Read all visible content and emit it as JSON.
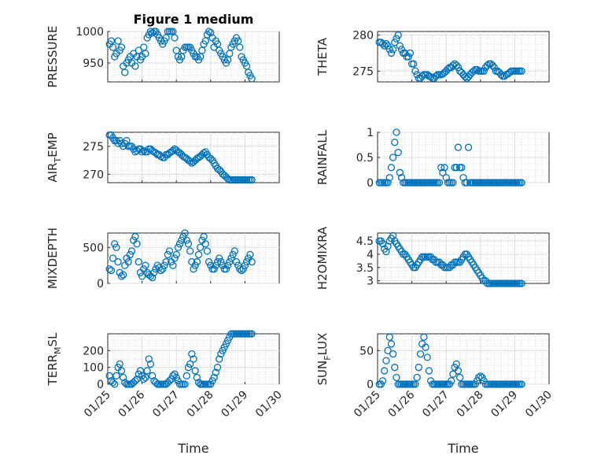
{
  "title": "Figure 1 medium",
  "chart_data": {
    "type": "scatter",
    "marker": "circle",
    "marker_color": "#0072bd",
    "grid": true,
    "minor_grid": true,
    "xlabel": "Time",
    "x_range": [
      "01/25",
      "01/30"
    ],
    "x_tick_labels": [
      "01/25",
      "01/26",
      "01/27",
      "01/28",
      "01/29",
      "01/30"
    ],
    "x": [
      0.05,
      0.1,
      0.15,
      0.2,
      0.25,
      0.3,
      0.35,
      0.4,
      0.45,
      0.5,
      0.55,
      0.6,
      0.65,
      0.7,
      0.75,
      0.8,
      0.85,
      0.9,
      0.95,
      1.0,
      1.05,
      1.1,
      1.15,
      1.2,
      1.25,
      1.3,
      1.35,
      1.4,
      1.45,
      1.5,
      1.55,
      1.6,
      1.65,
      1.7,
      1.75,
      1.8,
      1.85,
      1.9,
      1.95,
      2.0,
      2.05,
      2.1,
      2.15,
      2.2,
      2.25,
      2.3,
      2.35,
      2.4,
      2.45,
      2.5,
      2.55,
      2.6,
      2.65,
      2.7,
      2.75,
      2.8,
      2.85,
      2.9,
      2.95,
      3.0,
      3.05,
      3.1,
      3.15,
      3.2,
      3.25,
      3.3,
      3.35,
      3.4,
      3.45,
      3.5,
      3.55,
      3.6,
      3.65,
      3.7,
      3.75,
      3.8,
      3.85,
      3.9,
      3.95,
      4.0,
      4.05,
      4.1,
      4.15,
      4.2
    ],
    "panels": [
      {
        "ylabel": "PRESSURE",
        "ylim": [
          920,
          1000
        ],
        "y_ticks": [
          950,
          1000
        ],
        "values": [
          980,
          985,
          975,
          960,
          965,
          985,
          970,
          975,
          945,
          935,
          950,
          955,
          960,
          950,
          965,
          945,
          960,
          970,
          955,
          960,
          975,
          965,
          990,
          995,
          1000,
          998,
          1000,
          1000,
          995,
          990,
          985,
          980,
          985,
          990,
          1000,
          1000,
          1000,
          1000,
          990,
          970,
          960,
          955,
          960,
          970,
          975,
          975,
          975,
          975,
          970,
          965,
          960,
          960,
          955,
          960,
          970,
          980,
          985,
          995,
          1000,
          998,
          990,
          975,
          985,
          980,
          970,
          965,
          960,
          955,
          950,
          955,
          965,
          975,
          980,
          985,
          990,
          985,
          975,
          960,
          955,
          950,
          945,
          935,
          930,
          925
        ]
      },
      {
        "ylabel": "THETA",
        "ylim": [
          273.5,
          280.5
        ],
        "y_ticks": [
          275,
          280
        ],
        "values": [
          279,
          279,
          278.8,
          278.5,
          278.8,
          278.5,
          278,
          277.5,
          278,
          279,
          279.5,
          280,
          278.5,
          278,
          277.5,
          277.5,
          277,
          277,
          277.5,
          276,
          276,
          275,
          274.5,
          274,
          274,
          274.3,
          274.5,
          274.5,
          274.5,
          274.3,
          274.2,
          274,
          274,
          274.3,
          274.5,
          274.5,
          274.5,
          274.6,
          274.8,
          275,
          275.3,
          275.5,
          275.5,
          275.8,
          276,
          275.8,
          275.5,
          275,
          274.8,
          274.5,
          274.2,
          274,
          274.2,
          274.5,
          274.8,
          275,
          275.2,
          275.2,
          275,
          275,
          275,
          275,
          275.5,
          275.8,
          276,
          276,
          275.8,
          275.5,
          275,
          275,
          274.8,
          274.5,
          274.3,
          274.3,
          274.5,
          274.6,
          274.8,
          275,
          275,
          275,
          275,
          275,
          275,
          275
        ]
      },
      {
        "ylabel": "AIR_TEMP",
        "ylim": [
          268.5,
          277.5
        ],
        "y_ticks": [
          270,
          275
        ],
        "values": [
          277,
          277,
          276.5,
          276,
          276,
          275.5,
          276,
          275.5,
          275,
          275.5,
          276,
          275,
          275,
          275,
          274.5,
          274,
          274.2,
          274.5,
          274.5,
          274,
          274.2,
          274,
          274,
          274.5,
          274.5,
          274.2,
          274,
          273.8,
          273.5,
          273.5,
          273.2,
          273,
          273,
          273.5,
          273.5,
          273.8,
          274,
          274.2,
          274.5,
          274.3,
          274,
          273.8,
          273.5,
          273.2,
          273,
          272.8,
          272.5,
          272.3,
          272,
          272.2,
          272.5,
          272.8,
          273,
          273.2,
          273.5,
          273.8,
          274,
          273.5,
          273,
          272.8,
          272.5,
          272,
          271.5,
          271,
          270.8,
          270.5,
          270,
          269.8,
          269.5,
          269.2,
          269,
          269,
          269,
          269,
          269,
          269,
          269,
          269,
          269,
          269,
          269,
          269,
          269,
          269
        ]
      },
      {
        "ylabel": "RAINFALL",
        "ylim": [
          0,
          1
        ],
        "y_ticks": [
          0,
          0.5,
          1
        ],
        "values": [
          0,
          0,
          0,
          0,
          0,
          0,
          0.1,
          0.3,
          0.5,
          0.8,
          1.0,
          0.6,
          0.2,
          0.1,
          0,
          0,
          0,
          0,
          0,
          0,
          0,
          0,
          0,
          0,
          0,
          0,
          0,
          0,
          0,
          0,
          0,
          0,
          0,
          0,
          0,
          0,
          0.3,
          0.2,
          0.3,
          0.1,
          0,
          0,
          0,
          0,
          0.3,
          0.3,
          0.7,
          0.3,
          0.3,
          0.1,
          0,
          0,
          0.7,
          0,
          0,
          0,
          0,
          0,
          0,
          0,
          0,
          0,
          0,
          0,
          0,
          0,
          0,
          0,
          0,
          0,
          0,
          0,
          0,
          0,
          0,
          0,
          0,
          0,
          0,
          0,
          0,
          0,
          0,
          0
        ]
      },
      {
        "ylabel": "MIXDEPTH",
        "ylim": [
          0,
          700
        ],
        "y_ticks": [
          0,
          500
        ],
        "values": [
          200,
          180,
          350,
          550,
          500,
          300,
          150,
          100,
          120,
          250,
          350,
          300,
          400,
          450,
          600,
          650,
          550,
          300,
          150,
          100,
          200,
          250,
          150,
          120,
          100,
          80,
          150,
          200,
          250,
          220,
          180,
          200,
          250,
          300,
          400,
          450,
          300,
          250,
          350,
          400,
          500,
          550,
          600,
          650,
          700,
          600,
          550,
          450,
          300,
          200,
          250,
          300,
          400,
          500,
          600,
          650,
          550,
          450,
          300,
          250,
          200,
          200,
          250,
          300,
          350,
          300,
          250,
          200,
          200,
          250,
          300,
          350,
          400,
          450,
          300,
          250,
          200,
          180,
          200,
          250,
          300,
          350,
          400,
          300
        ]
      },
      {
        "ylabel": "H2OMIXRA",
        "ylim": [
          2.9,
          4.8
        ],
        "y_ticks": [
          3,
          3.5,
          4,
          4.5
        ],
        "values": [
          4.5,
          4.5,
          4.4,
          4.2,
          4.1,
          4.3,
          4.5,
          4.6,
          4.7,
          4.5,
          4.4,
          4.3,
          4.2,
          4.1,
          4.0,
          4.0,
          3.9,
          3.8,
          3.7,
          3.6,
          3.5,
          3.5,
          3.6,
          3.7,
          3.8,
          3.9,
          3.9,
          3.9,
          3.9,
          3.9,
          3.9,
          3.8,
          3.8,
          3.7,
          3.7,
          3.7,
          3.6,
          3.6,
          3.5,
          3.5,
          3.5,
          3.5,
          3.6,
          3.6,
          3.7,
          3.7,
          3.7,
          3.7,
          3.8,
          3.9,
          4.0,
          4.0,
          3.9,
          3.8,
          3.7,
          3.6,
          3.5,
          3.4,
          3.3,
          3.2,
          3.1,
          3.0,
          3.0,
          2.9,
          2.9,
          2.9,
          2.9,
          2.9,
          2.9,
          2.9,
          2.9,
          2.9,
          2.9,
          2.9,
          2.9,
          2.9,
          2.9,
          2.9,
          2.9,
          2.9,
          2.9,
          2.9,
          2.9,
          2.9
        ]
      },
      {
        "ylabel": "TERR_MSL",
        "ylim": [
          0,
          300
        ],
        "y_ticks": [
          0,
          100,
          200
        ],
        "values": [
          50,
          20,
          10,
          0,
          50,
          100,
          120,
          80,
          40,
          10,
          0,
          0,
          0,
          0,
          10,
          20,
          30,
          60,
          80,
          50,
          30,
          40,
          80,
          150,
          120,
          50,
          20,
          10,
          0,
          0,
          0,
          0,
          0,
          0,
          10,
          20,
          30,
          50,
          60,
          40,
          20,
          0,
          0,
          0,
          0,
          50,
          100,
          120,
          180,
          150,
          80,
          40,
          10,
          0,
          0,
          0,
          0,
          0,
          0,
          0,
          20,
          40,
          70,
          100,
          150,
          180,
          200,
          220,
          240,
          260,
          280,
          300,
          300,
          300,
          300,
          300,
          300,
          300,
          300,
          300,
          300,
          300,
          300,
          300
        ]
      },
      {
        "ylabel": "SUN_FLUX",
        "ylim": [
          0,
          75
        ],
        "y_ticks": [
          0,
          50
        ],
        "values": [
          0,
          0,
          5,
          20,
          35,
          50,
          70,
          60,
          45,
          25,
          10,
          0,
          0,
          0,
          0,
          0,
          0,
          0,
          0,
          0,
          0,
          0,
          10,
          25,
          45,
          60,
          70,
          55,
          40,
          20,
          5,
          0,
          0,
          0,
          0,
          0,
          0,
          0,
          0,
          0,
          0,
          0,
          5,
          15,
          25,
          30,
          20,
          10,
          0,
          0,
          0,
          0,
          0,
          0,
          0,
          0,
          0,
          5,
          10,
          12,
          10,
          5,
          0,
          0,
          0,
          0,
          0,
          0,
          0,
          0,
          0,
          0,
          0,
          0,
          0,
          0,
          0,
          0,
          0,
          0,
          0,
          0,
          0,
          0
        ]
      }
    ]
  }
}
